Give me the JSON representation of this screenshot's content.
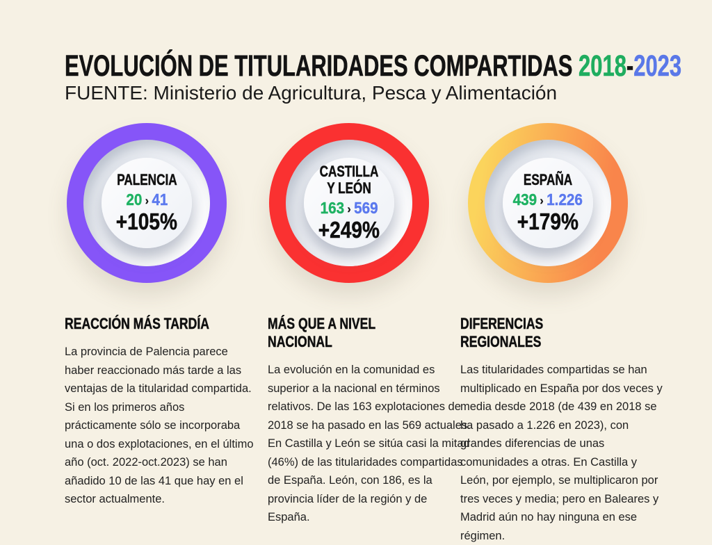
{
  "header": {
    "title_main": "EVOLUCIÓN DE TITULARIDADES COMPARTIDAS ",
    "title_year_start": "2018",
    "title_separator": "-",
    "title_year_end": "2023",
    "subtitle": "FUENTE: Ministerio de Agricultura, Pesca y Alimentación"
  },
  "colors": {
    "background": "#f6f1e4",
    "green": "#1fb263",
    "blue": "#5b79ee",
    "ring_purple": "#8655f8",
    "ring_red": "#fa3131",
    "ring_orange_start": "#fbd45c",
    "ring_orange_end": "#f9854b",
    "ink": "#141414"
  },
  "stats": [
    {
      "name": "PALENCIA",
      "value_2018": "20",
      "arrow": "›",
      "value_2023": "41",
      "change": "+105%",
      "ring_color": "#8655f8"
    },
    {
      "name": "CASTILLA Y LEÓN",
      "value_2018": "163",
      "arrow": "›",
      "value_2023": "569",
      "change": "+249%",
      "ring_color": "#fa3131"
    },
    {
      "name": "ESPAÑA",
      "value_2018": "439",
      "arrow": "›",
      "value_2023": "1.226",
      "change": "+179%",
      "ring_color": "orange-gradient"
    }
  ],
  "columns": [
    {
      "heading": "REACCIÓN MÁS TARDÍA",
      "body": "La provincia de Palencia parece haber reaccionado más tarde a las ventajas de la titularidad compartida. Si en los primeros años prácticamente sólo se incorporaba una o dos explotaciones, en el último año (oct. 2022-oct.2023) se han añadido 10 de las 41 que hay en el sector actualmente."
    },
    {
      "heading": "MÁS QUE A NIVEL NACIONAL",
      "body": "La evolución en la comunidad es superior a la nacional en términos relativos. De las 163 explotaciones de 2018 se ha pasado en las 569 actuales. En Castilla y León se sitúa casi la mitad (46%) de las titularidades compartidas de España. León, con 186, es la provincia líder de la región y de España."
    },
    {
      "heading": "DIFERENCIAS REGIONALES",
      "body": "Las titularidades compartidas se han multiplicado en España por dos veces y media desde 2018 (de 439 en 2018 se ha pasado a 1.226 en 2023), con grandes diferencias de unas comunidades a otras. En Castilla y León, por ejemplo, se multiplicaron por tres veces y media; pero en Baleares y Madrid aún no hay ninguna en ese régimen."
    }
  ],
  "chart_data": {
    "type": "table",
    "title": "EVOLUCIÓN DE TITULARIDADES COMPARTIDAS 2018-2023",
    "source": "Ministerio de Agricultura, Pesca y Alimentación",
    "categories": [
      "Palencia",
      "Castilla y León",
      "España"
    ],
    "series": [
      {
        "name": "2018",
        "values": [
          20,
          163,
          439
        ]
      },
      {
        "name": "2023",
        "values": [
          41,
          569,
          1226
        ]
      }
    ],
    "change_percent": [
      "+105%",
      "+249%",
      "+179%"
    ]
  }
}
